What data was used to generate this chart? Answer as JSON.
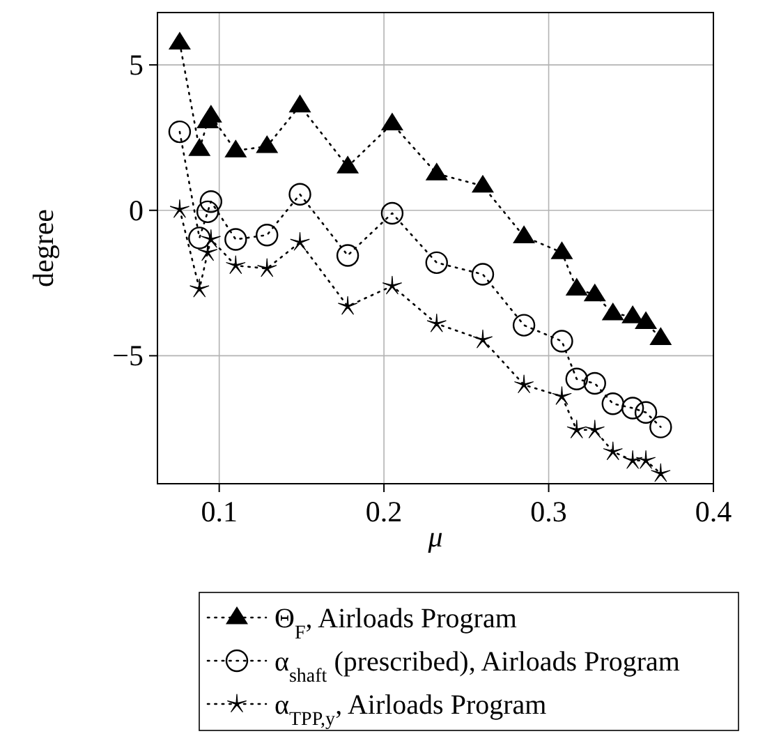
{
  "chart_data": {
    "type": "line",
    "xlabel": "μ",
    "ylabel": "degree",
    "xlim": [
      0.0625,
      0.4
    ],
    "ylim": [
      -9.4,
      6.8
    ],
    "xticks": [
      0.1,
      0.2,
      0.3,
      0.4
    ],
    "yticks": [
      {
        "value": -5,
        "label": "−5"
      },
      0,
      5
    ],
    "grid": true,
    "legend": "bottom",
    "line_style": "dotted",
    "x": [
      0.076,
      0.088,
      0.093,
      0.095,
      0.11,
      0.129,
      0.149,
      0.178,
      0.205,
      0.232,
      0.26,
      0.285,
      0.308,
      0.317,
      0.328,
      0.339,
      0.351,
      0.359,
      0.368
    ],
    "series": [
      {
        "name": "Θ$_{F}$, Airloads Program",
        "color": "#000000",
        "marker": "triangle",
        "values": [
          5.76,
          2.1,
          3.05,
          3.25,
          2.05,
          2.2,
          3.6,
          1.5,
          2.98,
          1.26,
          0.84,
          -0.9,
          -1.45,
          -2.7,
          -2.9,
          -3.55,
          -3.65,
          -3.85,
          -4.4
        ]
      },
      {
        "name": "α$_{shaft}$ (prescribed), Airloads Program",
        "color": "#000000",
        "marker": "circle",
        "values": [
          2.7,
          -0.95,
          -0.05,
          0.3,
          -1.0,
          -0.85,
          0.55,
          -1.55,
          -0.1,
          -1.8,
          -2.2,
          -3.95,
          -4.5,
          -5.8,
          -5.95,
          -6.65,
          -6.8,
          -6.95,
          -7.45
        ]
      },
      {
        "name": "α$_{TPP,y}$, Airloads Program",
        "color": "#000000",
        "marker": "star",
        "values": [
          0.03,
          -2.7,
          -1.45,
          -1.0,
          -1.9,
          -2.0,
          -1.1,
          -3.3,
          -2.6,
          -3.9,
          -4.45,
          -6.0,
          -6.4,
          -7.55,
          -7.55,
          -8.3,
          -8.6,
          -8.6,
          -9.05
        ]
      }
    ]
  }
}
